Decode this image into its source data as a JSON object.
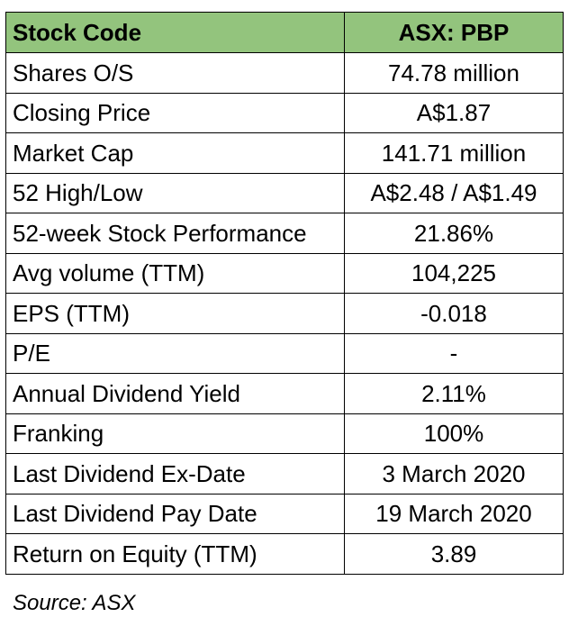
{
  "header": {
    "label": "Stock Code",
    "value": "ASX: PBP",
    "background": "#93c47d"
  },
  "rows": [
    {
      "label": "Shares O/S",
      "value": "74.78 million"
    },
    {
      "label": "Closing Price",
      "value": "A$1.87"
    },
    {
      "label": "Market Cap",
      "value": "141.71 million"
    },
    {
      "label": "52 High/Low",
      "value": "A$2.48 / A$1.49"
    },
    {
      "label": "52-week Stock Performance",
      "value": "21.86%"
    },
    {
      "label": "Avg volume (TTM)",
      "value": "104,225"
    },
    {
      "label": "EPS (TTM)",
      "value": "-0.018"
    },
    {
      "label": "P/E",
      "value": "-"
    },
    {
      "label": "Annual Dividend Yield",
      "value": "2.11%"
    },
    {
      "label": "Franking",
      "value": "100%"
    },
    {
      "label": "Last Dividend Ex-Date",
      "value": "3 March 2020"
    },
    {
      "label": "Last Dividend Pay Date",
      "value": "19 March 2020"
    },
    {
      "label": "Return on Equity (TTM)",
      "value": "3.89"
    }
  ],
  "source": "Source: ASX"
}
